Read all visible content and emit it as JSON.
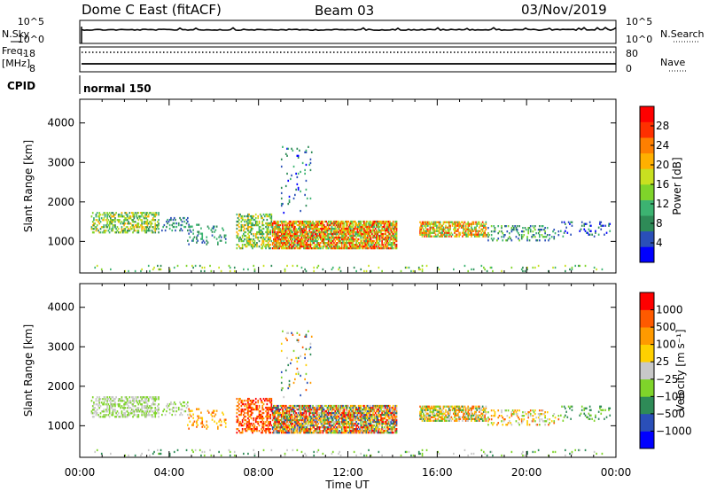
{
  "header": {
    "title": "Dome C East (fitACF)",
    "beam": "Beam 03",
    "date": "03/Nov/2019"
  },
  "top_panels": {
    "nsky_label": "N.Sky",
    "nsearch_label": "N.Search",
    "freq_label": "Freq.",
    "freq_unit": "[MHz]",
    "nave_label": "Nave",
    "cpid_label": "CPID",
    "cpid_value": "normal 150",
    "noise_ticks_left": [
      "10^5",
      "10^0"
    ],
    "noise_ticks_right": [
      "10^5",
      "10^0"
    ],
    "freq_ticks": [
      "18",
      "8"
    ],
    "nave_ticks": [
      "80",
      "0"
    ]
  },
  "colors": {
    "power_scale": [
      "#0000ff",
      "#2a4fb8",
      "#2e8b57",
      "#3cb371",
      "#7fd42a",
      "#c8e020",
      "#ffb000",
      "#ff7f00",
      "#ff3000",
      "#ff0000"
    ],
    "velocity_scale": [
      "#ff0000",
      "#ff5a00",
      "#ff9a00",
      "#ffd000",
      "#c8c8c8",
      "#7fd42a",
      "#2e8b57",
      "#2a4fb8",
      "#0000ff"
    ]
  },
  "chart_data": [
    {
      "type": "heatmap",
      "name": "power-panel",
      "xlabel": "",
      "ylabel": "Slant Range [km]",
      "ylim": [
        200,
        4600
      ],
      "y_ticks": [
        1000,
        2000,
        3000,
        4000
      ],
      "x_ticks": [
        "00:00",
        "04:00",
        "08:00",
        "12:00",
        "16:00",
        "20:00",
        "00:00"
      ],
      "xlim_hours": [
        0,
        24
      ],
      "colorbar": {
        "label": "Power [dB]",
        "ticks": [
          "4",
          "8",
          "12",
          "16",
          "20",
          "24",
          "28"
        ],
        "range": [
          0,
          30
        ]
      }
    },
    {
      "type": "heatmap",
      "name": "velocity-panel",
      "xlabel": "Time UT",
      "ylabel": "Slant Range [km]",
      "ylim": [
        200,
        4600
      ],
      "y_ticks": [
        1000,
        2000,
        3000,
        4000
      ],
      "x_ticks": [
        "00:00",
        "04:00",
        "08:00",
        "12:00",
        "16:00",
        "20:00",
        "00:00"
      ],
      "xlim_hours": [
        0,
        24
      ],
      "colorbar": {
        "label": "Velocity [m s⁻¹]",
        "ticks": [
          "1000",
          "500",
          "100",
          "25",
          "−25",
          "−100",
          "−500",
          "−1000"
        ]
      }
    }
  ]
}
